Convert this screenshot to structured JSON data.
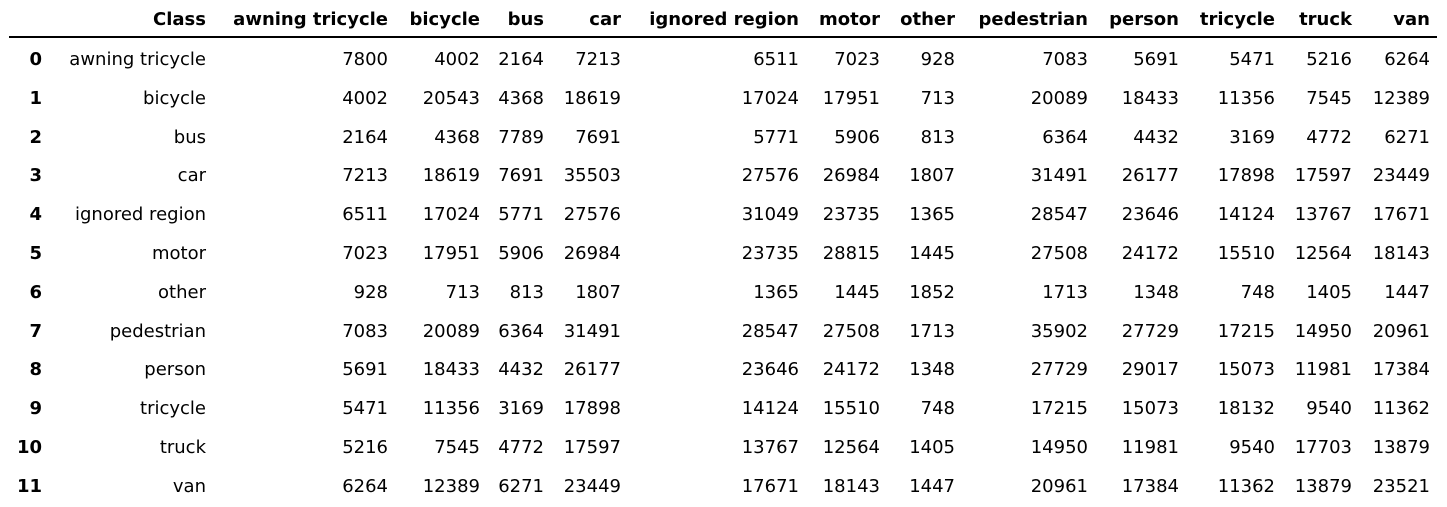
{
  "chart_data": {
    "type": "table",
    "header": {
      "index": "",
      "row_label": "Class",
      "columns": [
        "awning tricycle",
        "bicycle",
        "bus",
        "car",
        "ignored region",
        "motor",
        "other",
        "pedestrian",
        "person",
        "tricycle",
        "truck",
        "van"
      ]
    },
    "rows": [
      {
        "index": "0",
        "label": "awning tricycle",
        "values": [
          "7800",
          "4002",
          "2164",
          "7213",
          "6511",
          "7023",
          "928",
          "7083",
          "5691",
          "5471",
          "5216",
          "6264"
        ]
      },
      {
        "index": "1",
        "label": "bicycle",
        "values": [
          "4002",
          "20543",
          "4368",
          "18619",
          "17024",
          "17951",
          "713",
          "20089",
          "18433",
          "11356",
          "7545",
          "12389"
        ]
      },
      {
        "index": "2",
        "label": "bus",
        "values": [
          "2164",
          "4368",
          "7789",
          "7691",
          "5771",
          "5906",
          "813",
          "6364",
          "4432",
          "3169",
          "4772",
          "6271"
        ]
      },
      {
        "index": "3",
        "label": "car",
        "values": [
          "7213",
          "18619",
          "7691",
          "35503",
          "27576",
          "26984",
          "1807",
          "31491",
          "26177",
          "17898",
          "17597",
          "23449"
        ]
      },
      {
        "index": "4",
        "label": "ignored region",
        "values": [
          "6511",
          "17024",
          "5771",
          "27576",
          "31049",
          "23735",
          "1365",
          "28547",
          "23646",
          "14124",
          "13767",
          "17671"
        ]
      },
      {
        "index": "5",
        "label": "motor",
        "values": [
          "7023",
          "17951",
          "5906",
          "26984",
          "23735",
          "28815",
          "1445",
          "27508",
          "24172",
          "15510",
          "12564",
          "18143"
        ]
      },
      {
        "index": "6",
        "label": "other",
        "values": [
          "928",
          "713",
          "813",
          "1807",
          "1365",
          "1445",
          "1852",
          "1713",
          "1348",
          "748",
          "1405",
          "1447"
        ]
      },
      {
        "index": "7",
        "label": "pedestrian",
        "values": [
          "7083",
          "20089",
          "6364",
          "31491",
          "28547",
          "27508",
          "1713",
          "35902",
          "27729",
          "17215",
          "14950",
          "20961"
        ]
      },
      {
        "index": "8",
        "label": "person",
        "values": [
          "5691",
          "18433",
          "4432",
          "26177",
          "23646",
          "24172",
          "1348",
          "27729",
          "29017",
          "15073",
          "11981",
          "17384"
        ]
      },
      {
        "index": "9",
        "label": "tricycle",
        "values": [
          "5471",
          "11356",
          "3169",
          "17898",
          "14124",
          "15510",
          "748",
          "17215",
          "15073",
          "18132",
          "9540",
          "11362"
        ]
      },
      {
        "index": "10",
        "label": "truck",
        "values": [
          "5216",
          "7545",
          "4772",
          "17597",
          "13767",
          "12564",
          "1405",
          "14950",
          "11981",
          "9540",
          "17703",
          "13879"
        ]
      },
      {
        "index": "11",
        "label": "van",
        "values": [
          "6264",
          "12389",
          "6271",
          "23449",
          "17671",
          "18143",
          "1447",
          "20961",
          "17384",
          "11362",
          "13879",
          "23521"
        ]
      }
    ]
  }
}
